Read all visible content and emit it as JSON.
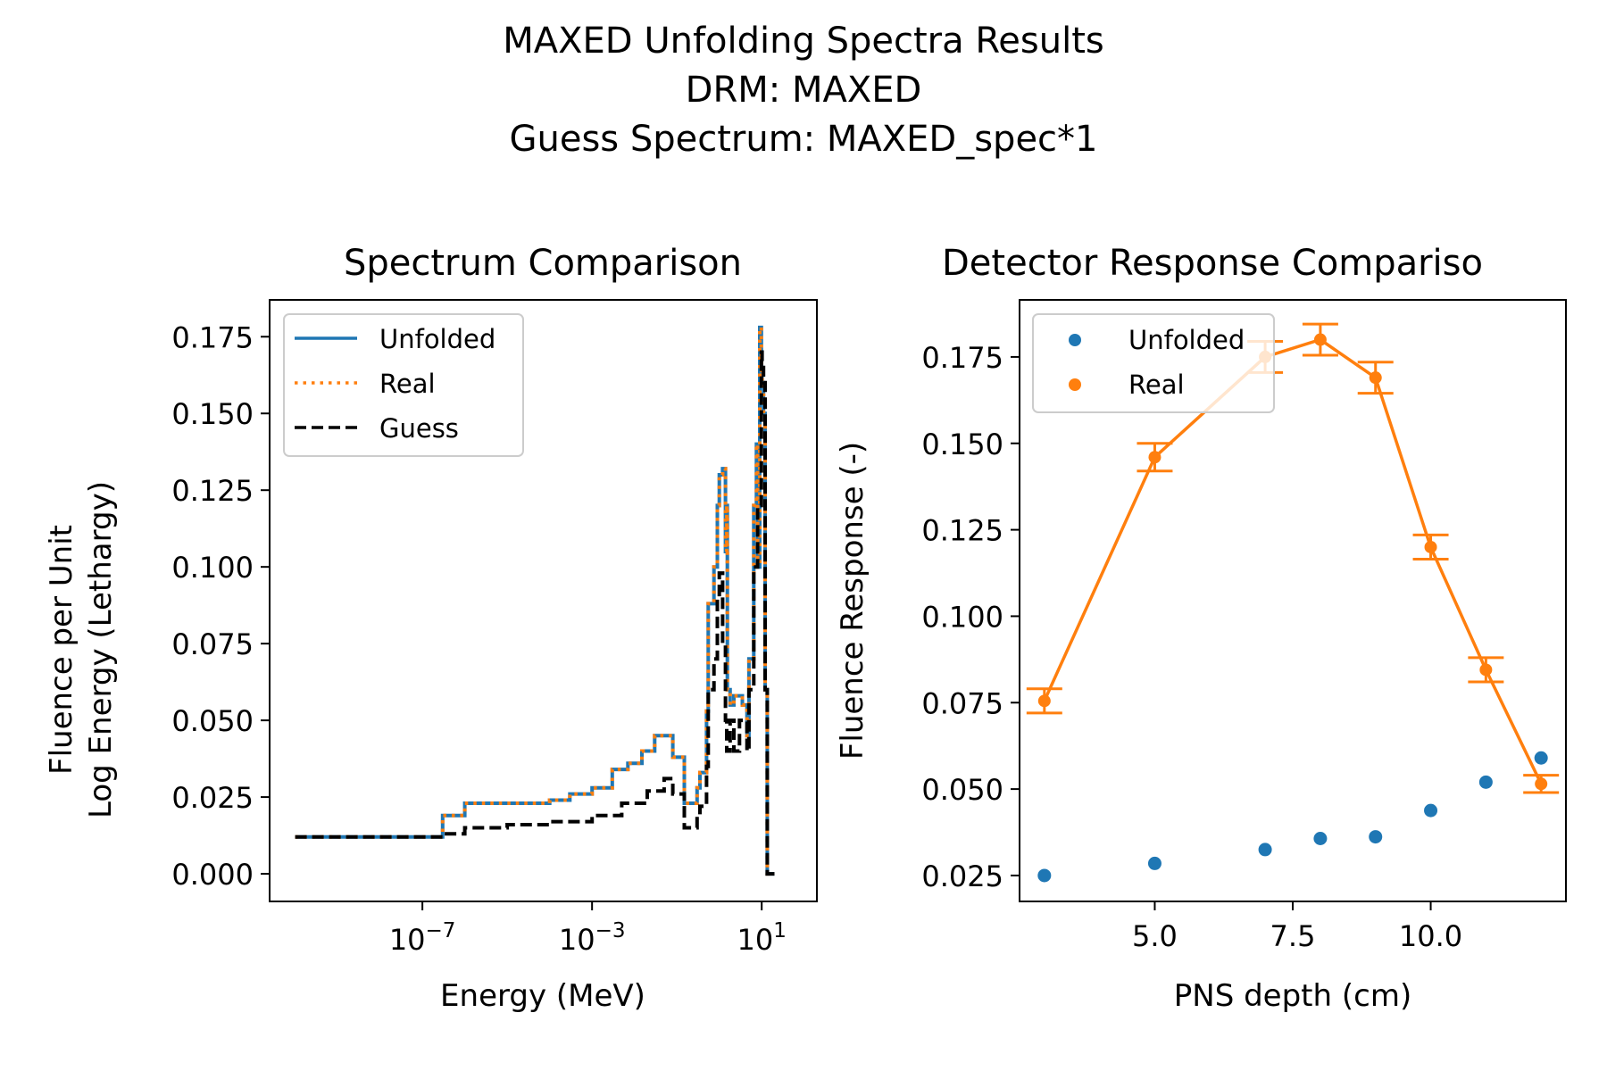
{
  "figure": {
    "suptitle_lines": [
      "MAXED Unfolding Spectra Results",
      "DRM: MAXED",
      "Guess Spectrum: MAXED_spec*1"
    ]
  },
  "colors": {
    "unfolded": "#1f77b4",
    "real": "#ff7f0e",
    "guess": "#000000"
  },
  "chart_data": [
    {
      "type": "line",
      "title": "Spectrum Comparison",
      "xlabel": "Energy (MeV)",
      "ylabel_lines": [
        "Fluence per Unit",
        "Log Energy (Lethargy)"
      ],
      "xscale": "log",
      "xlim": [
        2.5e-11,
        200
      ],
      "ylim": [
        -0.009,
        0.187
      ],
      "xticks": [
        {
          "value": 1e-07,
          "base": "10",
          "exp": "−7"
        },
        {
          "value": 0.001,
          "base": "10",
          "exp": "−3"
        },
        {
          "value": 10,
          "base": "10",
          "exp": "1"
        }
      ],
      "yticks": [
        0.0,
        0.025,
        0.05,
        0.075,
        0.1,
        0.125,
        0.15,
        0.175
      ],
      "ytick_labels": [
        "0.000",
        "0.025",
        "0.050",
        "0.075",
        "0.100",
        "0.125",
        "0.150",
        "0.175"
      ],
      "legend_position": "upper-left",
      "grid": false,
      "series": [
        {
          "name": "Unfolded",
          "style": "solid",
          "x": [
            1e-10,
            1e-08,
            1e-07,
            1.5e-07,
            3e-07,
            1e-06,
            1e-05,
            0.0001,
            0.0003,
            0.001,
            0.003,
            0.007,
            0.015,
            0.03,
            0.05,
            0.08,
            0.15,
            0.3,
            0.35,
            0.5,
            0.55,
            0.75,
            0.9,
            1.0,
            1.2,
            1.4,
            1.5,
            1.55,
            1.8,
            2.2,
            3.0,
            3.5,
            4.5,
            5.0,
            6.5,
            7.5,
            8.0,
            9.0,
            9.8,
            10.2,
            11.0,
            12.0,
            13.5,
            20.0
          ],
          "y": [
            0.012,
            0.012,
            0.012,
            0.012,
            0.019,
            0.023,
            0.023,
            0.024,
            0.026,
            0.028,
            0.034,
            0.036,
            0.04,
            0.045,
            0.045,
            0.038,
            0.023,
            0.028,
            0.033,
            0.053,
            0.088,
            0.1,
            0.12,
            0.13,
            0.132,
            0.105,
            0.12,
            0.06,
            0.055,
            0.058,
            0.058,
            0.055,
            0.045,
            0.07,
            0.12,
            0.14,
            0.1,
            0.178,
            0.165,
            0.16,
            0.15,
            0.06,
            0.0,
            0.0
          ]
        },
        {
          "name": "Real",
          "style": "dotted",
          "x": [
            1e-10,
            1e-08,
            1e-07,
            1.5e-07,
            3e-07,
            1e-06,
            1e-05,
            0.0001,
            0.0003,
            0.001,
            0.003,
            0.007,
            0.015,
            0.03,
            0.05,
            0.08,
            0.15,
            0.3,
            0.35,
            0.5,
            0.55,
            0.75,
            0.9,
            1.0,
            1.2,
            1.4,
            1.5,
            1.55,
            1.8,
            2.2,
            3.0,
            3.5,
            4.5,
            5.0,
            6.5,
            7.5,
            8.0,
            9.0,
            9.8,
            10.2,
            11.0,
            12.0,
            13.5,
            20.0
          ],
          "y": [
            0.012,
            0.012,
            0.012,
            0.012,
            0.019,
            0.023,
            0.023,
            0.024,
            0.026,
            0.028,
            0.034,
            0.036,
            0.04,
            0.045,
            0.045,
            0.038,
            0.023,
            0.028,
            0.033,
            0.053,
            0.088,
            0.1,
            0.12,
            0.13,
            0.132,
            0.105,
            0.12,
            0.06,
            0.055,
            0.058,
            0.058,
            0.055,
            0.045,
            0.07,
            0.12,
            0.14,
            0.1,
            0.178,
            0.165,
            0.16,
            0.15,
            0.06,
            0.0,
            0.0
          ]
        },
        {
          "name": "Guess",
          "style": "dashed",
          "x": [
            1e-10,
            1e-08,
            1e-07,
            3e-07,
            1e-06,
            1e-05,
            0.0001,
            0.001,
            0.005,
            0.02,
            0.05,
            0.08,
            0.15,
            0.3,
            0.35,
            0.5,
            0.55,
            0.75,
            0.9,
            1.0,
            1.2,
            1.4,
            1.5,
            1.8,
            2.2,
            3.0,
            4.5,
            5.0,
            6.5,
            8.0,
            9.8,
            10.2,
            11.0,
            12.0,
            13.5,
            20.0
          ],
          "y": [
            0.012,
            0.012,
            0.012,
            0.013,
            0.015,
            0.016,
            0.017,
            0.019,
            0.023,
            0.027,
            0.031,
            0.026,
            0.015,
            0.019,
            0.022,
            0.035,
            0.06,
            0.07,
            0.09,
            0.098,
            0.075,
            0.05,
            0.04,
            0.05,
            0.04,
            0.05,
            0.04,
            0.06,
            0.1,
            0.12,
            0.17,
            0.165,
            0.16,
            0.06,
            0.0,
            0.0
          ]
        }
      ]
    },
    {
      "type": "scatter",
      "title": "Detector Response Compariso",
      "xlabel": "PNS depth (cm)",
      "ylabel": "Fluence Response (-)",
      "xlim": [
        2.55,
        12.45
      ],
      "ylim": [
        0.0175,
        0.1915
      ],
      "xticks": [
        5.0,
        7.5,
        10.0
      ],
      "xtick_labels": [
        "5.0",
        "7.5",
        "10.0"
      ],
      "yticks": [
        0.025,
        0.05,
        0.075,
        0.1,
        0.125,
        0.15,
        0.175
      ],
      "ytick_labels": [
        "0.025",
        "0.050",
        "0.075",
        "0.100",
        "0.125",
        "0.150",
        "0.175"
      ],
      "legend_position": "upper-left",
      "grid": false,
      "series": [
        {
          "name": "Unfolded",
          "marker": "circle",
          "x": [
            3,
            5,
            7,
            8,
            9,
            10,
            11,
            12
          ],
          "y": [
            0.025,
            0.0285,
            0.0325,
            0.0357,
            0.0362,
            0.0438,
            0.052,
            0.059
          ]
        },
        {
          "name": "Real",
          "marker": "circle",
          "line": true,
          "errorbars": true,
          "x": [
            3,
            5,
            7,
            8,
            9,
            10,
            11,
            12
          ],
          "y": [
            0.0755,
            0.146,
            0.175,
            0.18,
            0.169,
            0.12,
            0.0845,
            0.0515
          ],
          "yerr": [
            0.0035,
            0.004,
            0.0045,
            0.0045,
            0.0045,
            0.0035,
            0.0035,
            0.0025
          ]
        }
      ]
    }
  ]
}
